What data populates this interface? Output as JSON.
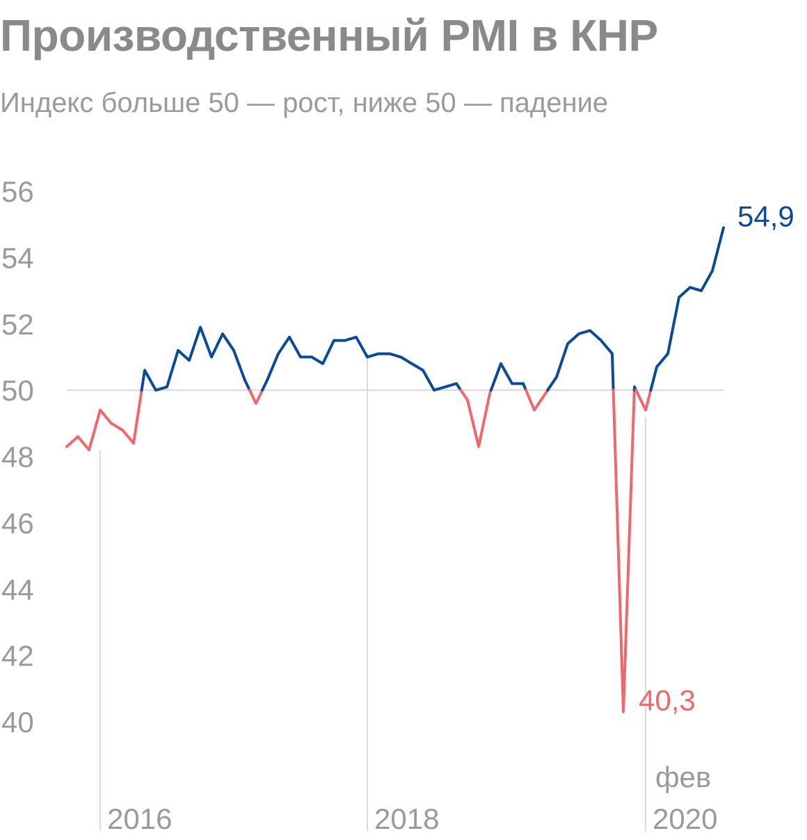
{
  "header": {
    "title": "Производственный PMI в КНР",
    "subtitle": "Индекс больше 50 — рост, ниже 50 — падение"
  },
  "colors": {
    "above": "#0b4a99",
    "below": "#f0686c",
    "text": "#9a9a9a",
    "grid": "#d9d9d9"
  },
  "chart_data": {
    "type": "line",
    "title": "Производственный PMI в КНР",
    "subtitle": "Индекс больше 50 — рост, ниже 50 — падение",
    "xlabel": "",
    "ylabel": "",
    "ylim": [
      40,
      56
    ],
    "yticks": [
      "40",
      "42",
      "44",
      "46",
      "48",
      "50",
      "52",
      "54",
      "56"
    ],
    "xticks": [
      {
        "label": "2016",
        "date": "2016-01"
      },
      {
        "label": "2018",
        "date": "2018-01"
      },
      {
        "label": "2020",
        "date": "2020-02",
        "sublabel": "фев"
      }
    ],
    "reference_line": 50,
    "grid": false,
    "start": "2015-10",
    "series": [
      {
        "values": [
          48.3,
          48.6,
          48.2,
          49.4,
          49.0,
          48.8,
          48.4,
          50.6,
          50.0,
          50.1,
          51.2,
          50.9,
          51.9,
          51.0,
          51.7,
          51.2,
          50.3,
          49.6,
          50.3,
          51.1,
          51.6,
          51.0,
          51.0,
          50.8,
          51.5,
          51.5,
          51.6,
          51.0,
          51.1,
          51.1,
          51.0,
          50.8,
          50.6,
          50.0,
          50.1,
          50.2,
          49.7,
          48.3,
          49.9,
          50.8,
          50.2,
          50.2,
          49.4,
          49.9,
          50.4,
          51.4,
          51.7,
          51.8,
          51.5,
          51.1,
          40.3,
          50.1,
          49.4,
          50.7,
          51.1,
          52.8,
          53.1,
          53.0,
          53.6,
          54.9
        ],
        "last_label": "54,9",
        "min_label": "40,3"
      }
    ]
  }
}
